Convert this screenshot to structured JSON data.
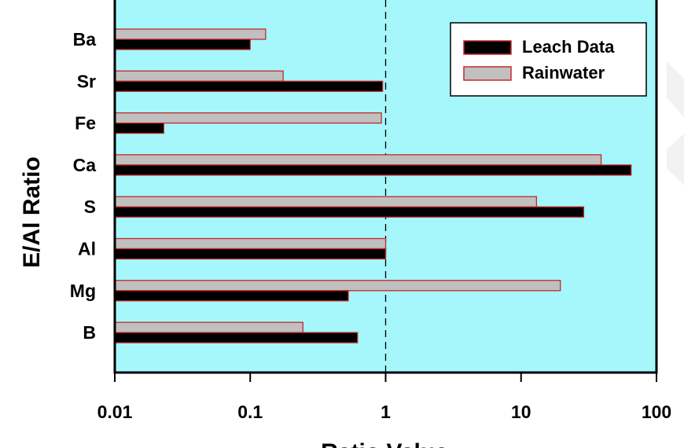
{
  "chart_data": {
    "type": "bar",
    "orientation": "horizontal",
    "categories": [
      "Ba",
      "Sr",
      "Fe",
      "Ca",
      "S",
      "Al",
      "Mg",
      "B"
    ],
    "series": [
      {
        "name": "Leach Data",
        "values": [
          0.1,
          0.95,
          0.023,
          65,
          29,
          1.0,
          0.53,
          0.62
        ],
        "color": "#000000"
      },
      {
        "name": "Rainwater",
        "values": [
          0.13,
          0.175,
          0.93,
          39,
          13,
          1.0,
          19.5,
          0.245
        ],
        "color": "#c0c0c0",
        "edge": "#c62828"
      }
    ],
    "xlabel": "Ratio Value",
    "ylabel": "E/Al Ratio",
    "xscale": "log",
    "xlim": [
      0.01,
      100
    ],
    "xticks": [
      "0.01",
      "0.1",
      "1",
      "10",
      "100"
    ],
    "reference_line": 1,
    "legend": "top-right",
    "plot_background": "#a5f7fc",
    "grid": false
  }
}
